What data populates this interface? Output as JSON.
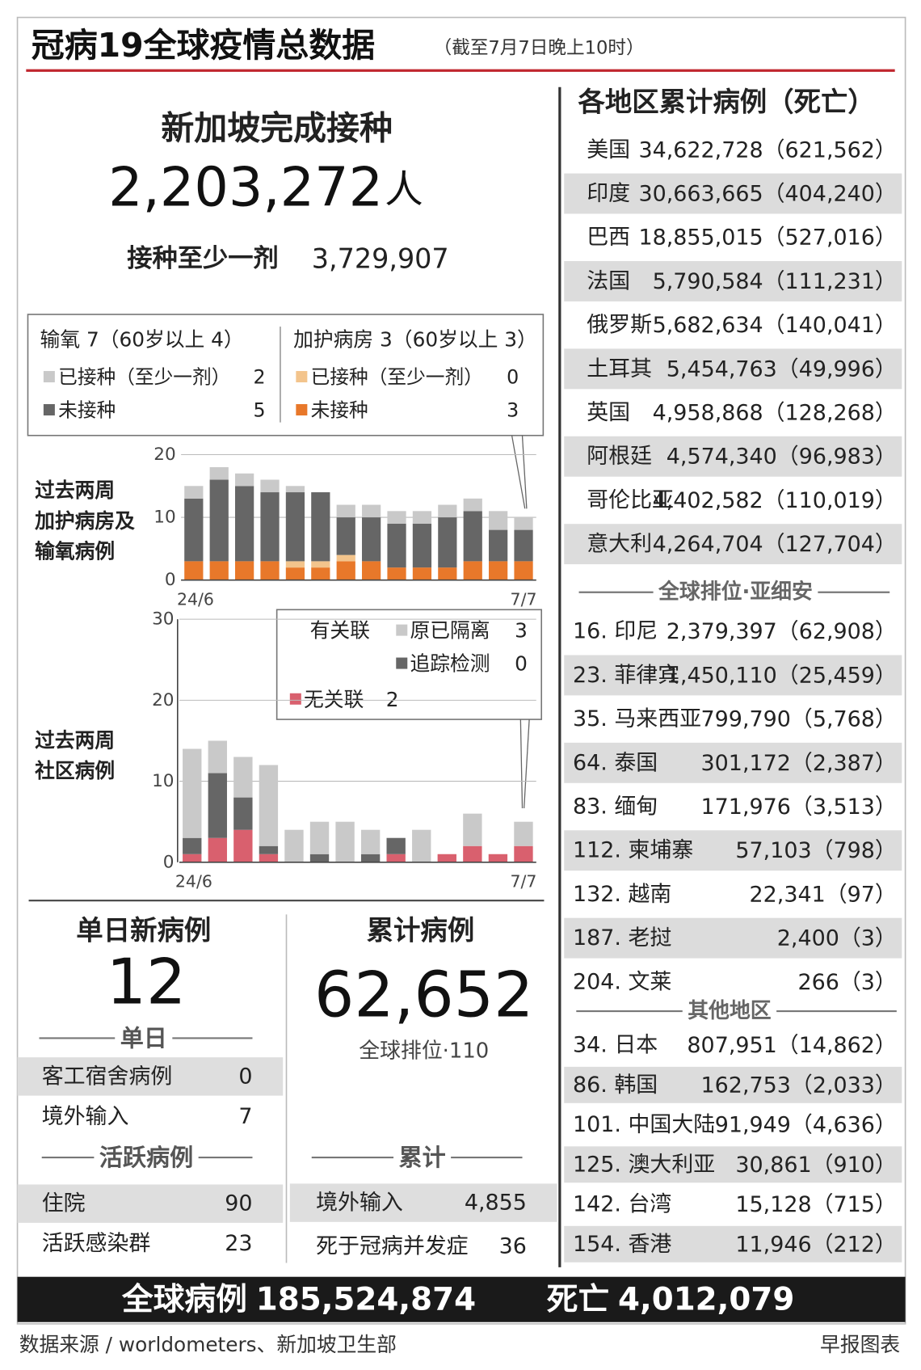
{
  "header": {
    "title": "冠病19全球疫情总数据",
    "subtitle": "（截至7月7日晚上10时）"
  },
  "vaccination": {
    "title": "新加坡完成接种",
    "total": "2,203,272",
    "unit": "人",
    "partial_label": "接种至少一剂",
    "partial": "3,729,907"
  },
  "hospital_legend": {
    "oxygen": {
      "title": "输氧 7（60岁以上 4）",
      "vaccinated": 2,
      "unvaccinated": 5
    },
    "icu": {
      "title": "加护病房 3（60岁以上 3）",
      "vaccinated": 0,
      "unvaccinated": 3
    }
  },
  "community_legend": {
    "linked": "有关联",
    "quarantined": 3,
    "traced": 0,
    "unlinked": 2
  },
  "chart_data": [
    {
      "type": "bar",
      "stacked": true,
      "title": [
        "过去两周",
        "加护病房及",
        "输氧病例"
      ],
      "categories": [
        "24/6",
        null,
        null,
        null,
        null,
        null,
        null,
        null,
        null,
        null,
        null,
        null,
        null,
        "7/7"
      ],
      "series": [
        {
          "name": "未接种",
          "color": "#e8782a",
          "values": [
            3,
            3,
            3,
            3,
            2,
            2,
            3,
            3,
            2,
            2,
            2,
            3,
            3,
            3
          ]
        },
        {
          "name": "已接种（至少一剂）",
          "color": "#f3c48c",
          "values": [
            0,
            0,
            0,
            0,
            1,
            1,
            1,
            0,
            0,
            0,
            0,
            0,
            0,
            0
          ]
        },
        {
          "name": "未接种",
          "color": "#666666",
          "values": [
            10,
            13,
            12,
            11,
            11,
            11,
            6,
            7,
            7,
            7,
            8,
            8,
            5,
            5
          ]
        },
        {
          "name": "已接种（至少一剂）",
          "color": "#c9c9c9",
          "values": [
            2,
            2,
            2,
            2,
            1,
            0,
            2,
            2,
            2,
            2,
            2,
            2,
            3,
            2
          ]
        }
      ],
      "ylim": [
        0,
        20
      ],
      "yticks": [
        0,
        10,
        20
      ],
      "grid": true
    },
    {
      "type": "bar",
      "stacked": true,
      "title": [
        "过去两周",
        "社区病例"
      ],
      "categories": [
        "24/6",
        null,
        null,
        null,
        null,
        null,
        null,
        null,
        null,
        null,
        null,
        null,
        null,
        "7/7"
      ],
      "series": [
        {
          "name": "无关联",
          "color": "#d9606e",
          "values": [
            1,
            3,
            4,
            1,
            0,
            0,
            0,
            0,
            1,
            0,
            1,
            2,
            1,
            2
          ]
        },
        {
          "name": "追踪检测",
          "color": "#666666",
          "values": [
            2,
            8,
            4,
            1,
            0,
            1,
            0,
            1,
            2,
            0,
            0,
            0,
            0,
            0
          ]
        },
        {
          "name": "原已隔离",
          "color": "#c9c9c9",
          "values": [
            11,
            4,
            5,
            10,
            4,
            4,
            5,
            3,
            0,
            4,
            0,
            4,
            0,
            3
          ]
        }
      ],
      "ylim": [
        0,
        30
      ],
      "yticks": [
        0,
        10,
        20,
        30
      ],
      "grid": true
    }
  ],
  "daily": {
    "title": "单日新病例",
    "total": 12,
    "section": "单日",
    "rows": [
      [
        "客工宿舍病例",
        0
      ],
      [
        "境外输入",
        7
      ]
    ],
    "active_section": "活跃病例",
    "active_rows": [
      [
        "住院",
        90
      ],
      [
        "活跃感染群",
        23
      ]
    ]
  },
  "cumulative": {
    "title": "累计病例",
    "total": "62,652",
    "rank": "全球排位·110",
    "section": "累计",
    "rows": [
      [
        "境外输入",
        "4,855"
      ],
      [
        "死于冠病并发症",
        36
      ]
    ]
  },
  "regions": {
    "title": "各地区累计病例（死亡）",
    "rows": [
      [
        "美国",
        "34,622,728",
        "（621,562）"
      ],
      [
        "印度",
        "30,663,665",
        "（404,240）"
      ],
      [
        "巴西",
        "18,855,015",
        "（527,016）"
      ],
      [
        "法国",
        "5,790,584",
        "（111,231）"
      ],
      [
        "俄罗斯",
        "5,682,634",
        "（140,041）"
      ],
      [
        "土耳其",
        "5,454,763",
        "（49,996）"
      ],
      [
        "英国",
        "4,958,868",
        "（128,268）"
      ],
      [
        "阿根廷",
        "4,574,340",
        "（96,983）"
      ],
      [
        "哥伦比亚",
        "4,402,582",
        "（110,019）"
      ],
      [
        "意大利",
        "4,264,704",
        "（127,704）"
      ]
    ],
    "asean": {
      "title": "全球排位·亚细安",
      "rows": [
        [
          "16. 印尼",
          "2,379,397",
          "（62,908）"
        ],
        [
          "23. 菲律宾",
          "1,450,110",
          "（25,459）"
        ],
        [
          "35. 马来西亚",
          "799,790",
          "（5,768）"
        ],
        [
          "64. 泰国",
          "301,172",
          "（2,387）"
        ],
        [
          "83. 缅甸",
          "171,976",
          "（3,513）"
        ],
        [
          "112. 柬埔寨",
          "57,103",
          "（798）"
        ],
        [
          "132. 越南",
          "22,341",
          "（97）"
        ],
        [
          "187. 老挝",
          "2,400",
          "（3）"
        ],
        [
          "204. 文莱",
          "266",
          "（3）"
        ]
      ]
    },
    "others": {
      "title": "其他地区",
      "rows": [
        [
          "34. 日本",
          "807,951",
          "（14,862）"
        ],
        [
          "86. 韩国",
          "162,753",
          "（2,033）"
        ],
        [
          "101. 中国大陆",
          "91,949",
          "（4,636）"
        ],
        [
          "125. 澳大利亚",
          "30,861",
          "（910）"
        ],
        [
          "142. 台湾",
          "15,128",
          "（715）"
        ],
        [
          "154. 香港",
          "11,946",
          "（212）"
        ]
      ]
    }
  },
  "totals": {
    "cases_label": "全球病例",
    "cases": "185,524,874",
    "deaths_label": "死亡",
    "deaths": "4,012,079"
  },
  "footer": {
    "source": "数据来源 / worldometers、新加坡卫生部",
    "credit": "早报图表"
  }
}
